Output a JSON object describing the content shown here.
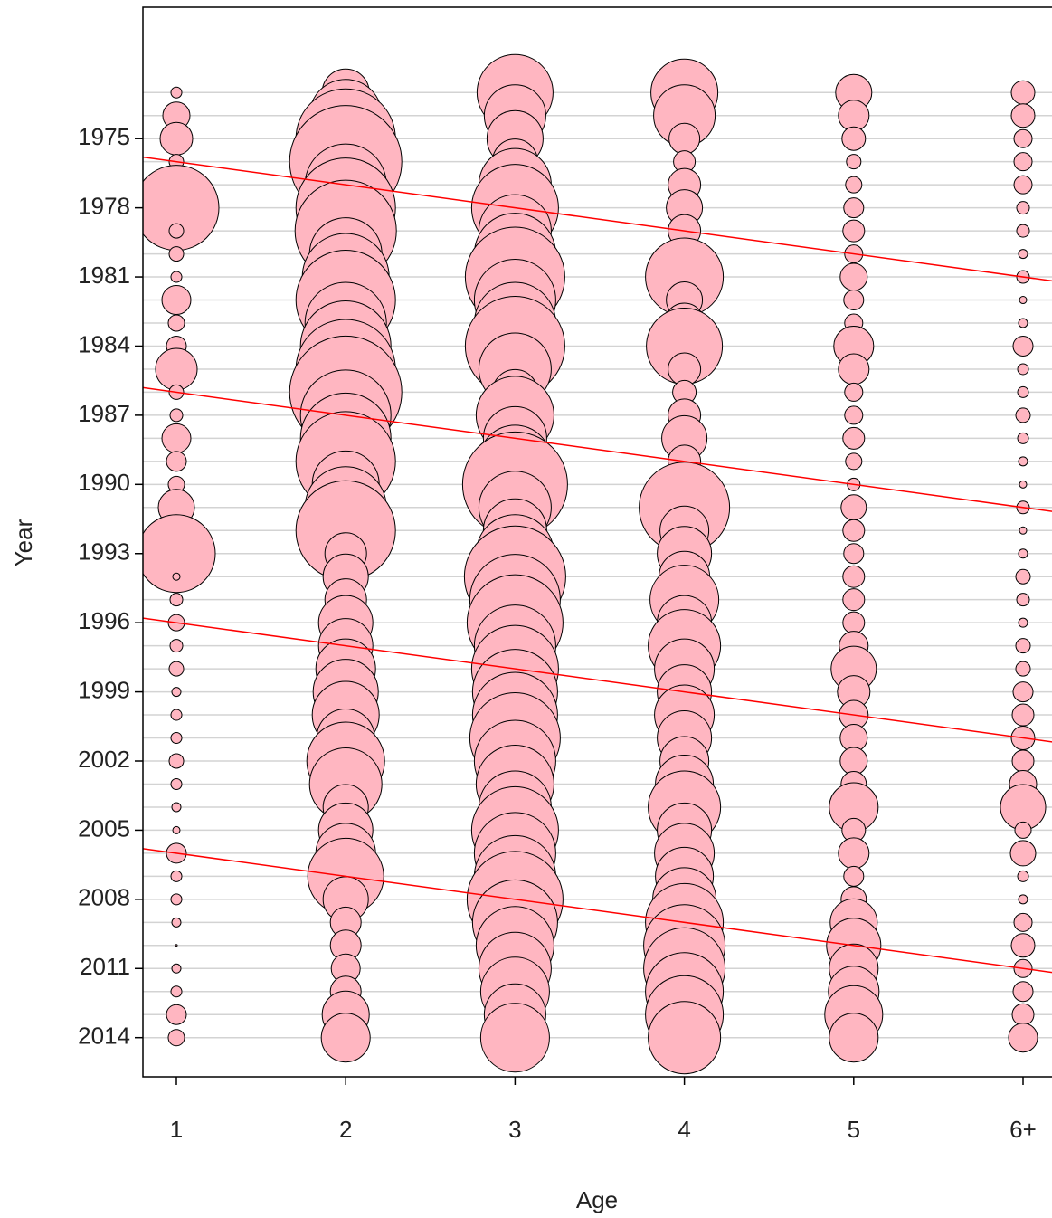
{
  "chart_data": {
    "type": "bubble",
    "xlabel": "Age",
    "ylabel": "Year",
    "categories": [
      "1",
      "2",
      "3",
      "4",
      "5",
      "6+"
    ],
    "y": [
      1973,
      1974,
      1975,
      1976,
      1977,
      1978,
      1979,
      1980,
      1981,
      1982,
      1983,
      1984,
      1985,
      1986,
      1987,
      1988,
      1989,
      1990,
      1991,
      1992,
      1993,
      1994,
      1995,
      1996,
      1997,
      1998,
      1999,
      2000,
      2001,
      2002,
      2003,
      2004,
      2005,
      2006,
      2007,
      2008,
      2009,
      2010,
      2011,
      2012,
      2013,
      2014
    ],
    "values": [
      [
        6,
        15,
        18,
        8,
        10,
        47,
        8,
        8,
        6,
        16,
        9,
        11,
        23,
        8,
        7,
        16,
        11,
        9,
        20,
        16,
        43,
        4,
        7,
        9,
        7,
        8,
        5,
        6,
        6,
        8,
        6,
        5,
        4,
        11,
        6,
        6,
        5,
        1,
        5,
        6,
        11,
        9
      ],
      [
        26,
        40,
        55,
        62,
        45,
        55,
        56,
        40,
        48,
        55,
        45,
        50,
        55,
        62,
        50,
        50,
        55,
        37,
        45,
        55,
        23,
        25,
        23,
        30,
        30,
        33,
        36,
        37,
        32,
        43,
        40,
        25,
        30,
        33,
        42,
        25,
        17,
        17,
        16,
        17,
        26,
        27
      ],
      [
        42,
        34,
        31,
        25,
        40,
        48,
        40,
        45,
        55,
        45,
        45,
        55,
        40,
        25,
        43,
        35,
        40,
        58,
        40,
        35,
        43,
        56,
        50,
        53,
        45,
        48,
        47,
        47,
        50,
        45,
        43,
        40,
        48,
        45,
        45,
        53,
        47,
        43,
        40,
        38,
        34,
        38
      ],
      [
        37,
        34,
        17,
        12,
        18,
        20,
        18,
        13,
        43,
        20,
        22,
        42,
        18,
        13,
        18,
        25,
        18,
        20,
        50,
        27,
        30,
        28,
        38,
        30,
        40,
        33,
        30,
        33,
        30,
        27,
        32,
        40,
        30,
        33,
        32,
        35,
        43,
        45,
        45,
        43,
        43,
        40
      ],
      [
        20,
        17,
        13,
        8,
        9,
        11,
        12,
        10,
        15,
        11,
        10,
        22,
        17,
        10,
        10,
        12,
        9,
        7,
        14,
        12,
        11,
        12,
        12,
        12,
        16,
        25,
        18,
        16,
        15,
        15,
        14,
        27,
        13,
        17,
        11,
        14,
        26,
        30,
        27,
        28,
        32,
        27
      ],
      [
        13,
        13,
        10,
        10,
        10,
        7,
        7,
        5,
        7,
        4,
        5,
        11,
        6,
        6,
        8,
        6,
        5,
        4,
        7,
        4,
        5,
        8,
        7,
        5,
        8,
        8,
        11,
        12,
        13,
        12,
        15,
        25,
        9,
        14,
        6,
        5,
        10,
        13,
        10,
        11,
        12,
        16
      ]
    ],
    "color": "#ffb6c1",
    "ylim": [
      2015.7,
      1969.3
    ],
    "yticks": [
      1975,
      1978,
      1981,
      1984,
      1987,
      1990,
      1993,
      1996,
      1999,
      2002,
      2005,
      2008,
      2011,
      2014
    ],
    "grid": true,
    "cohort_lines": [
      1976,
      1986,
      1996,
      2006
    ],
    "cohort_color": "#ff0000"
  }
}
